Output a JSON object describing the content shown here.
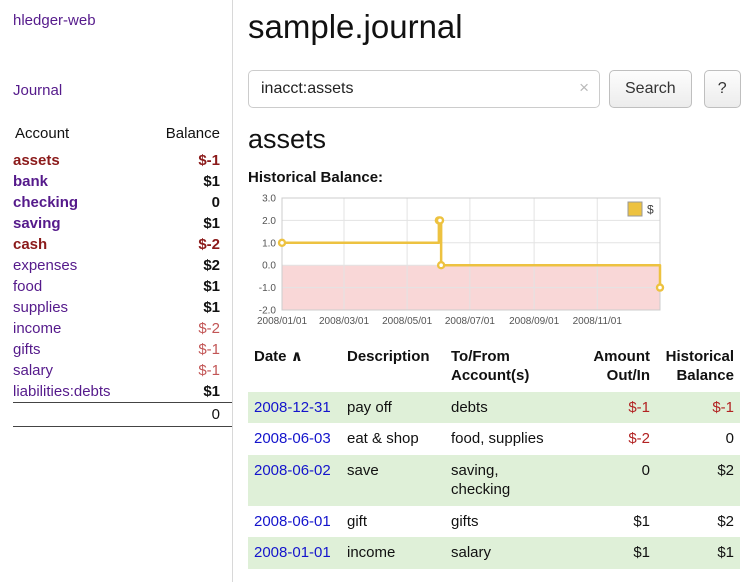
{
  "colors": {
    "purple": "#551A8B",
    "negative_dark": "#8b1a1a",
    "negative_light": "#c25555",
    "negative_table": "#b22222",
    "link_blue": "#1414cc",
    "row_green": "#dff0d8"
  },
  "sidebar": {
    "app_title": "hledger-web",
    "journal_link": "Journal",
    "accounts": {
      "header_account": "Account",
      "header_balance": "Balance",
      "rows": [
        {
          "name": "assets",
          "indent": 0,
          "name_style": "sel negd",
          "balance": "$-1",
          "balance_style": "negd"
        },
        {
          "name": "bank",
          "indent": 1,
          "name_style": "sel",
          "balance": "$1",
          "balance_style": ""
        },
        {
          "name": "checking",
          "indent": 2,
          "name_style": "sel",
          "balance": "0",
          "balance_style": ""
        },
        {
          "name": "saving",
          "indent": 2,
          "name_style": "sel",
          "balance": "$1",
          "balance_style": ""
        },
        {
          "name": "cash",
          "indent": 1,
          "name_style": "sel negd",
          "balance": "$-2",
          "balance_style": "negd"
        },
        {
          "name": "expenses",
          "indent": 0,
          "name_style": "",
          "balance": "$2",
          "balance_style": ""
        },
        {
          "name": "food",
          "indent": 1,
          "name_style": "",
          "balance": "$1",
          "balance_style": ""
        },
        {
          "name": "supplies",
          "indent": 1,
          "name_style": "",
          "balance": "$1",
          "balance_style": ""
        },
        {
          "name": "income",
          "indent": 0,
          "name_style": "",
          "balance": "$-2",
          "balance_style": "negl"
        },
        {
          "name": "gifts",
          "indent": 1,
          "name_style": "",
          "balance": "$-1",
          "balance_style": "negl"
        },
        {
          "name": "salary",
          "indent": 1,
          "name_style": "",
          "balance": "$-1",
          "balance_style": "negl"
        },
        {
          "name": "liabilities:debts",
          "indent": 0,
          "name_style": "",
          "balance": "$1",
          "balance_style": ""
        }
      ],
      "total": "0"
    }
  },
  "main": {
    "title": "sample.journal",
    "search": {
      "value": "inacct:assets",
      "clear_icon": "×",
      "button_label": "Search",
      "help_label": "?"
    },
    "account_heading": "assets",
    "chart_label": "Historical Balance:"
  },
  "chart_data": {
    "type": "line",
    "title": "Historical Balance",
    "step": true,
    "grid": true,
    "legend_position": "top-right",
    "legend": [
      {
        "label": "$",
        "color": "#edc240"
      }
    ],
    "line_color": "#edc240",
    "negative_region_fill": "#f9d7d7",
    "ylim": [
      -2,
      3
    ],
    "y_ticks": [
      3.0,
      2.0,
      1.0,
      0.0,
      -1.0,
      -2.0
    ],
    "x_ticks": [
      {
        "label": "2008/01/01",
        "f": 0.0
      },
      {
        "label": "2008/03/01",
        "f": 0.164
      },
      {
        "label": "2008/05/01",
        "f": 0.331
      },
      {
        "label": "2008/07/01",
        "f": 0.497
      },
      {
        "label": "2008/09/01",
        "f": 0.667
      },
      {
        "label": "2008/11/01",
        "f": 0.834
      }
    ],
    "points": [
      {
        "date": "2008-01-01",
        "f": 0.0,
        "y": 1
      },
      {
        "date": "2008-06-01",
        "f": 0.415,
        "y": 2
      },
      {
        "date": "2008-06-02",
        "f": 0.418,
        "y": 2
      },
      {
        "date": "2008-06-03",
        "f": 0.421,
        "y": 0
      },
      {
        "date": "2008-12-31",
        "f": 1.0,
        "y": -1
      }
    ]
  },
  "register": {
    "sort_icon": "∧",
    "headers": [
      {
        "lines": [
          "Date"
        ],
        "align": "left",
        "sort": "asc"
      },
      {
        "lines": [
          "Description"
        ],
        "align": "left"
      },
      {
        "lines": [
          "To/From",
          "Account(s)"
        ],
        "align": "left"
      },
      {
        "lines": [
          "Amount",
          "Out/In"
        ],
        "align": "right"
      },
      {
        "lines": [
          "Historical",
          "Balance"
        ],
        "align": "right"
      }
    ],
    "rows": [
      {
        "date": "2008-12-31",
        "description": "pay off",
        "accounts": "debts",
        "amount": "$-1",
        "amount_negative": true,
        "balance": "$-1",
        "balance_negative": true
      },
      {
        "date": "2008-06-03",
        "description": "eat & shop",
        "accounts": "food, supplies",
        "amount": "$-2",
        "amount_negative": true,
        "balance": "0",
        "balance_negative": false
      },
      {
        "date": "2008-06-02",
        "description": "save",
        "accounts": "saving, checking",
        "amount": "0",
        "amount_negative": false,
        "balance": "$2",
        "balance_negative": false
      },
      {
        "date": "2008-06-01",
        "description": "gift",
        "accounts": "gifts",
        "amount": "$1",
        "amount_negative": false,
        "balance": "$2",
        "balance_negative": false
      },
      {
        "date": "2008-01-01",
        "description": "income",
        "accounts": "salary",
        "amount": "$1",
        "amount_negative": false,
        "balance": "$1",
        "balance_negative": false
      }
    ]
  }
}
